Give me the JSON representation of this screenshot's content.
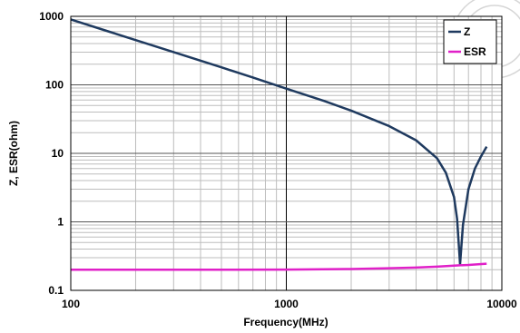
{
  "chart_data": {
    "type": "line",
    "xlabel": "Frequency(MHz)",
    "ylabel": "Z, ESR(ohm)",
    "x_scale": "log",
    "y_scale": "log",
    "xlim": [
      100,
      10000
    ],
    "ylim": [
      0.1,
      1000
    ],
    "x_ticks": [
      "100",
      "1000",
      "10000"
    ],
    "y_ticks": [
      "1000",
      "100",
      "10",
      "1",
      "0.1"
    ],
    "grid": true,
    "legend": "top-right",
    "series": [
      {
        "name": "Z",
        "color": "#1f3a5f",
        "points": [
          [
            100,
            900
          ],
          [
            150,
            600
          ],
          [
            200,
            450
          ],
          [
            300,
            300
          ],
          [
            500,
            180
          ],
          [
            700,
            128
          ],
          [
            1000,
            88
          ],
          [
            1500,
            58
          ],
          [
            2000,
            42
          ],
          [
            3000,
            25
          ],
          [
            4000,
            15.5
          ],
          [
            5000,
            8.5
          ],
          [
            5500,
            5.2
          ],
          [
            6000,
            2.3
          ],
          [
            6200,
            1.1
          ],
          [
            6400,
            0.24
          ],
          [
            6600,
            0.9
          ],
          [
            7000,
            3.0
          ],
          [
            7500,
            6.0
          ],
          [
            8000,
            9.0
          ],
          [
            8500,
            12.5
          ]
        ]
      },
      {
        "name": "ESR",
        "color": "#e020c8",
        "points": [
          [
            100,
            0.2
          ],
          [
            300,
            0.2
          ],
          [
            1000,
            0.201
          ],
          [
            2000,
            0.205
          ],
          [
            3000,
            0.21
          ],
          [
            4000,
            0.215
          ],
          [
            5000,
            0.222
          ],
          [
            6000,
            0.23
          ],
          [
            7000,
            0.235
          ],
          [
            8500,
            0.245
          ]
        ]
      }
    ]
  }
}
